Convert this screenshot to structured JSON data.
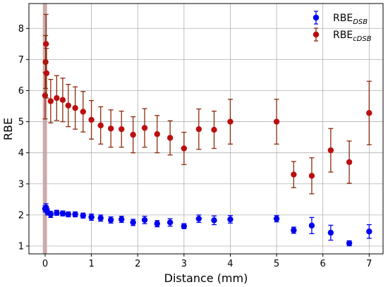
{
  "chart_data": {
    "type": "scatter",
    "xlabel": "Distance (mm)",
    "ylabel": "RBE",
    "xlim": [
      -0.35,
      7.3
    ],
    "ylim": [
      0.75,
      8.8
    ],
    "x_ticks": [
      0,
      1,
      2,
      3,
      4,
      5,
      6,
      7
    ],
    "y_ticks": [
      1,
      2,
      3,
      4,
      5,
      6,
      7,
      8
    ],
    "grid": true,
    "legend_position": "top-right",
    "shaded_band": {
      "x0": -0.05,
      "x1": 0.04,
      "color": "#d4a9a9"
    },
    "series": [
      {
        "name": "RBE",
        "name_sub": "DSB",
        "color": "#0000ee",
        "errcolor": "#0000ee",
        "points": [
          {
            "x": 0.0,
            "y": 2.2,
            "err": 0.1
          },
          {
            "x": 0.02,
            "y": 2.24,
            "err": 0.12
          },
          {
            "x": 0.05,
            "y": 2.1,
            "err": 0.1
          },
          {
            "x": 0.12,
            "y": 2.02,
            "err": 0.1
          },
          {
            "x": 0.25,
            "y": 2.07,
            "err": 0.08
          },
          {
            "x": 0.38,
            "y": 2.05,
            "err": 0.08
          },
          {
            "x": 0.5,
            "y": 2.02,
            "err": 0.08
          },
          {
            "x": 0.65,
            "y": 2.02,
            "err": 0.08
          },
          {
            "x": 0.82,
            "y": 1.98,
            "err": 0.08
          },
          {
            "x": 1.0,
            "y": 1.93,
            "err": 0.1
          },
          {
            "x": 1.2,
            "y": 1.9,
            "err": 0.1
          },
          {
            "x": 1.42,
            "y": 1.84,
            "err": 0.1
          },
          {
            "x": 1.65,
            "y": 1.86,
            "err": 0.1
          },
          {
            "x": 1.9,
            "y": 1.76,
            "err": 0.1
          },
          {
            "x": 2.15,
            "y": 1.84,
            "err": 0.12
          },
          {
            "x": 2.42,
            "y": 1.72,
            "err": 0.1
          },
          {
            "x": 2.7,
            "y": 1.76,
            "err": 0.12
          },
          {
            "x": 3.0,
            "y": 1.64,
            "err": 0.08
          },
          {
            "x": 3.32,
            "y": 1.88,
            "err": 0.12
          },
          {
            "x": 3.65,
            "y": 1.83,
            "err": 0.14
          },
          {
            "x": 4.0,
            "y": 1.86,
            "err": 0.12
          },
          {
            "x": 5.0,
            "y": 1.88,
            "err": 0.1
          },
          {
            "x": 5.37,
            "y": 1.51,
            "err": 0.1
          },
          {
            "x": 5.76,
            "y": 1.66,
            "err": 0.26
          },
          {
            "x": 6.17,
            "y": 1.43,
            "err": 0.24
          },
          {
            "x": 6.57,
            "y": 1.09,
            "err": 0.08
          },
          {
            "x": 7.0,
            "y": 1.47,
            "err": 0.22
          }
        ]
      },
      {
        "name": "RBE",
        "name_sub": "cDSB",
        "color": "#bb0f0f",
        "errcolor": "#8b2a0a",
        "points": [
          {
            "x": 0.0,
            "y": 5.84,
            "err": 0.75
          },
          {
            "x": 0.01,
            "y": 6.92,
            "err": 0.85
          },
          {
            "x": 0.02,
            "y": 7.5,
            "err": 0.95
          },
          {
            "x": 0.03,
            "y": 6.56,
            "err": 0.8
          },
          {
            "x": 0.12,
            "y": 5.66,
            "err": 0.7
          },
          {
            "x": 0.25,
            "y": 5.76,
            "err": 0.72
          },
          {
            "x": 0.38,
            "y": 5.7,
            "err": 0.7
          },
          {
            "x": 0.5,
            "y": 5.52,
            "err": 0.68
          },
          {
            "x": 0.65,
            "y": 5.44,
            "err": 0.68
          },
          {
            "x": 0.82,
            "y": 5.32,
            "err": 0.65
          },
          {
            "x": 1.0,
            "y": 5.06,
            "err": 0.62
          },
          {
            "x": 1.2,
            "y": 4.88,
            "err": 0.6
          },
          {
            "x": 1.42,
            "y": 4.78,
            "err": 0.6
          },
          {
            "x": 1.65,
            "y": 4.76,
            "err": 0.58
          },
          {
            "x": 1.9,
            "y": 4.58,
            "err": 0.58
          },
          {
            "x": 2.15,
            "y": 4.8,
            "err": 0.62
          },
          {
            "x": 2.42,
            "y": 4.6,
            "err": 0.6
          },
          {
            "x": 2.7,
            "y": 4.48,
            "err": 0.55
          },
          {
            "x": 3.0,
            "y": 4.14,
            "err": 0.52
          },
          {
            "x": 3.32,
            "y": 4.76,
            "err": 0.65
          },
          {
            "x": 3.65,
            "y": 4.74,
            "err": 0.6
          },
          {
            "x": 4.0,
            "y": 5.0,
            "err": 0.72
          },
          {
            "x": 5.0,
            "y": 5.0,
            "err": 0.72
          },
          {
            "x": 5.37,
            "y": 3.3,
            "err": 0.42
          },
          {
            "x": 5.76,
            "y": 3.26,
            "err": 0.58
          },
          {
            "x": 6.17,
            "y": 4.08,
            "err": 0.7
          },
          {
            "x": 6.57,
            "y": 3.7,
            "err": 0.68
          },
          {
            "x": 7.0,
            "y": 5.28,
            "err": 1.02
          }
        ]
      }
    ]
  }
}
